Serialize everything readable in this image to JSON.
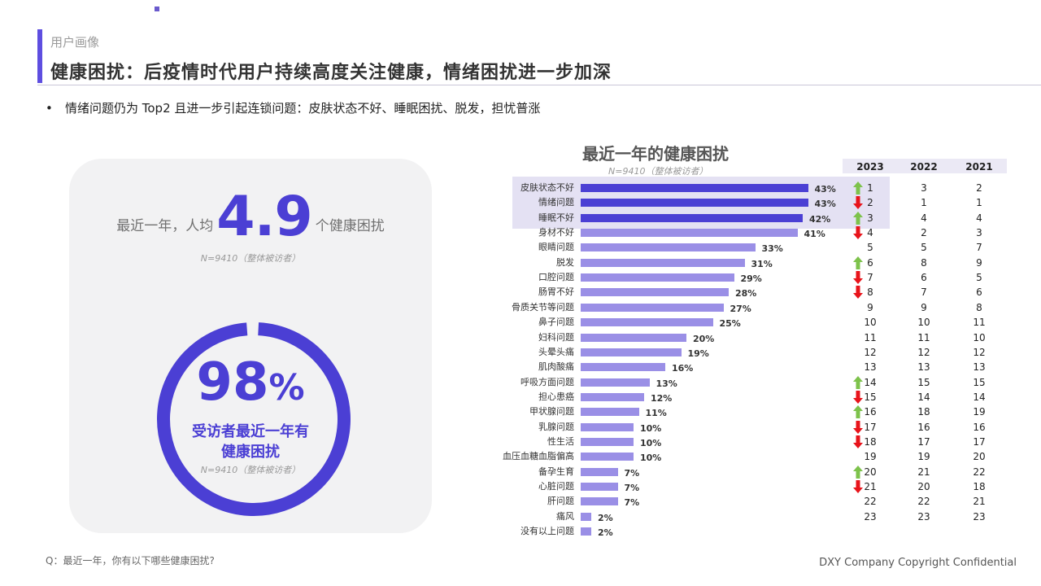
{
  "header": {
    "section": "用户画像",
    "title": "健康困扰：后疫情时代用户持续高度关注健康，情绪困扰进一步加深",
    "bullet": "情绪问题仍为 Top2 且进一步引起连锁问题：皮肤状态不好、睡眠困扰、脱发，担忧普涨"
  },
  "left_card": {
    "avg_prefix": "最近一年，人均",
    "avg_value": "4.9",
    "avg_suffix": "个健康困扰",
    "avg_sample": "N=9410（整体被访者）",
    "ring_pct": "98",
    "ring_pct_symbol": "%",
    "ring_label_line1": "受访者最近一年有",
    "ring_label_line2": "健康困扰",
    "ring_sample": "N=9410（整体被访者）"
  },
  "colors": {
    "accent": "#4b3fd4",
    "bar_light": "#9a8fe6",
    "highlight_bg": "#e4e1f3",
    "up": "#7dc24b",
    "down": "#e8141b"
  },
  "table_headers": {
    "y2023": "2023",
    "y2022": "2022",
    "y2021": "2021"
  },
  "footer": {
    "question": "Q：最近一年，你有以下哪些健康困扰?",
    "copyright": "DXY Company Copyright Confidential"
  },
  "chart_data": {
    "type": "bar",
    "orientation": "horizontal",
    "title": "最近一年的健康困扰",
    "subtitle": "N=9410（整体被访者）",
    "categories": [
      "皮肤状态不好",
      "情绪问题",
      "睡眠不好",
      "身材不好",
      "眼睛问题",
      "脱发",
      "口腔问题",
      "肠胃不好",
      "骨质关节等问题",
      "鼻子问题",
      "妇科问题",
      "头晕头痛",
      "肌肉酸痛",
      "呼吸方面问题",
      "担心患癌",
      "甲状腺问题",
      "乳腺问题",
      "性生活",
      "血压血糖血脂偏高",
      "备孕生育",
      "心脏问题",
      "肝问题",
      "痛风",
      "没有以上问题"
    ],
    "values": [
      43,
      43,
      42,
      41,
      33,
      31,
      29,
      28,
      27,
      25,
      20,
      19,
      16,
      13,
      12,
      11,
      10,
      10,
      10,
      7,
      7,
      7,
      2,
      2
    ],
    "value_labels": [
      "43%",
      "43%",
      "42%",
      "41%",
      "33%",
      "31%",
      "29%",
      "28%",
      "27%",
      "25%",
      "20%",
      "19%",
      "16%",
      "13%",
      "12%",
      "11%",
      "10%",
      "10%",
      "10%",
      "7%",
      "7%",
      "7%",
      "2%",
      "2%"
    ],
    "highlighted": [
      0,
      1,
      2
    ],
    "rank_table": {
      "columns": [
        "2023",
        "2022",
        "2021"
      ],
      "rank_2023": [
        "1",
        "2",
        "3",
        "4",
        "5",
        "6",
        "7",
        "8",
        "9",
        "10",
        "11",
        "12",
        "13",
        "14",
        "15",
        "16",
        "17",
        "18",
        "19",
        "20",
        "21",
        "22",
        "23",
        ""
      ],
      "rank_2022": [
        "3",
        "1",
        "4",
        "2",
        "5",
        "8",
        "6",
        "7",
        "9",
        "10",
        "11",
        "12",
        "13",
        "15",
        "14",
        "18",
        "16",
        "17",
        "19",
        "21",
        "20",
        "22",
        "23",
        ""
      ],
      "rank_2021": [
        "2",
        "1",
        "4",
        "3",
        "7",
        "9",
        "5",
        "6",
        "8",
        "11",
        "10",
        "12",
        "13",
        "15",
        "14",
        "19",
        "16",
        "17",
        "20",
        "22",
        "18",
        "21",
        "23",
        ""
      ],
      "trend": [
        "up",
        "down",
        "up",
        "down",
        "",
        "up",
        "down",
        "down",
        "",
        "",
        "",
        "",
        "",
        "up",
        "down",
        "up",
        "down",
        "down",
        "",
        "up",
        "down",
        "",
        "",
        ""
      ]
    }
  }
}
